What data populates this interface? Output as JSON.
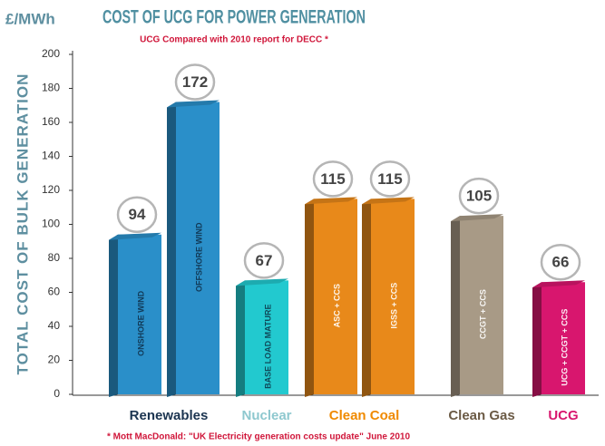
{
  "chart_data": {
    "type": "bar",
    "title": "COST OF UCG FOR POWER GENERATION",
    "subtitle": "UCG Compared with 2010 report for DECC *",
    "unit_label": "£/MWh",
    "y_label": "TOTAL COST OF BULK GENERATION",
    "footnote": "* Mott MacDonald: \"UK Electricity generation costs update\" June 2010",
    "ylim": [
      0,
      200
    ],
    "yticks": [
      0,
      20,
      40,
      60,
      80,
      100,
      120,
      140,
      160,
      180,
      200
    ],
    "series": [
      {
        "name": "Renewables",
        "color": "#2a8fc9",
        "label_color": "#1b3450",
        "categories": [
          "ONSHORE WIND",
          "OFFSHORE WIND"
        ],
        "values": [
          94,
          172
        ]
      },
      {
        "name": "Nuclear",
        "color": "#22c9cf",
        "label_color": "#8ec8cf",
        "categories": [
          "BASE LOAD MATURE"
        ],
        "values": [
          67
        ]
      },
      {
        "name": "Clean Coal",
        "color": "#e8891a",
        "label_color": "#f08a00",
        "categories": [
          "ASC + CCS",
          "IGSS + CCS"
        ],
        "values": [
          115,
          115
        ]
      },
      {
        "name": "Clean Gas",
        "color": "#a89a86",
        "label_color": "#6b5a45",
        "categories": [
          "CCGT + CCS"
        ],
        "values": [
          105
        ]
      },
      {
        "name": "UCG",
        "color": "#d8166e",
        "label_color": "#d8166e",
        "categories": [
          "UCG + CCGT + CCS"
        ],
        "values": [
          66
        ]
      }
    ]
  }
}
